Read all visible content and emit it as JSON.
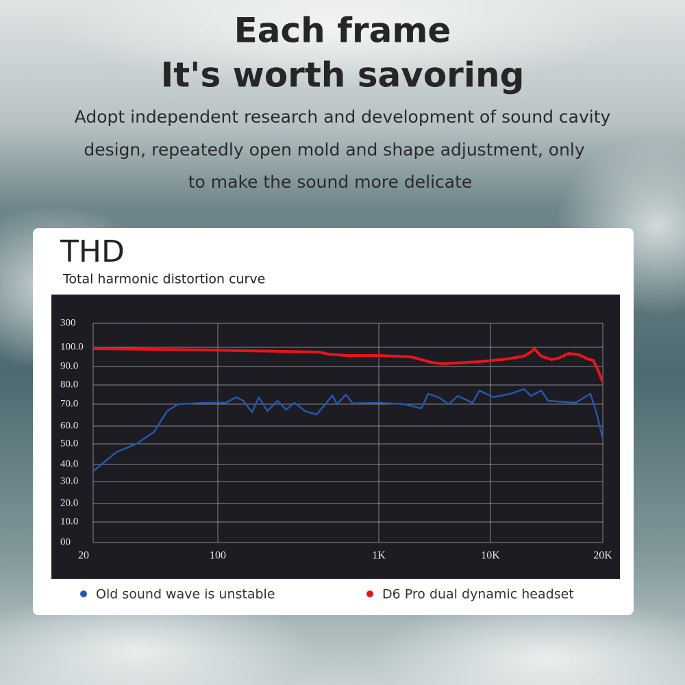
{
  "header": {
    "title": [
      "Each frame",
      "It's worth savoring"
    ],
    "body": [
      "Adopt independent research and development of sound cavity",
      "design, repeatedly open mold and shape adjustment, only",
      "to make the sound more delicate"
    ]
  },
  "chart_data": {
    "type": "line",
    "title": "THD",
    "subtitle": "Total harmonic distortion curve",
    "log_x": true,
    "grid": true,
    "legend": "bottom",
    "xlim": [
      20,
      20000
    ],
    "xticks": [
      20,
      100,
      {
        "value": 1000,
        "label": "1K"
      },
      {
        "value": 10000,
        "label": "10K"
      },
      {
        "value": 20000,
        "label": "20K"
      }
    ],
    "ylim": [
      0,
      300
    ],
    "yticks": [
      300,
      {
        "value": 100,
        "label": "100.0"
      },
      {
        "value": 90,
        "label": "90.0"
      },
      {
        "value": 80,
        "label": "80.0"
      },
      {
        "value": 70,
        "label": "70.0"
      },
      {
        "value": 60,
        "label": "60.0"
      },
      {
        "value": 50,
        "label": "50.0"
      },
      {
        "value": 40,
        "label": "40.0"
      },
      {
        "value": 30,
        "label": "30.0"
      },
      {
        "value": 20,
        "label": "20.0"
      },
      {
        "value": 10,
        "label": "10.0"
      },
      {
        "value": 0,
        "label": "00"
      }
    ],
    "series": [
      {
        "name": "Old sound wave is unstable",
        "color": "#2457b0",
        "x": [
          20,
          27,
          35,
          44,
          52,
          60,
          85,
          112,
          130,
          144,
          163,
          180,
          203,
          235,
          266,
          300,
          347,
          410,
          466,
          514,
          550,
          625,
          689,
          1000,
          1686,
          2400,
          2766,
          3418,
          4226,
          5080,
          6920,
          7980,
          10170,
          11300,
          12300,
          12830,
          13670,
          14260,
          16890,
          18530,
          19170,
          20000
        ],
        "values": [
          36,
          46,
          50,
          56.9,
          66.9,
          70,
          70.7,
          70.7,
          73.6,
          71.8,
          66.3,
          73.6,
          66.9,
          71.8,
          67.5,
          70.7,
          66.9,
          65.3,
          70,
          74.6,
          70,
          75,
          70.4,
          70.7,
          70,
          68.1,
          75.4,
          73.6,
          70,
          74.3,
          70.7,
          77.1,
          73.6,
          75.4,
          77.9,
          74.3,
          77.1,
          71.8,
          70.7,
          75.4,
          66.9,
          53.1
        ]
      },
      {
        "name": "D6 Pro dual dynamic headset",
        "color": "#e8141b",
        "x": [
          20,
          85,
          423,
          489,
          625,
          1000,
          1943,
          2967,
          3667,
          7980,
          11070,
          12300,
          12830,
          13100,
          13670,
          14570,
          15200,
          16190,
          17250,
          18230,
          18850,
          19410,
          20000
        ],
        "values": [
          99.3,
          98.6,
          97.5,
          96.4,
          95.7,
          95.7,
          95,
          92.1,
          91.4,
          92.5,
          93.9,
          95.4,
          97.5,
          99.3,
          95.4,
          93.6,
          94.3,
          96.8,
          96.1,
          93.9,
          93.2,
          88.1,
          81.5
        ]
      }
    ]
  }
}
